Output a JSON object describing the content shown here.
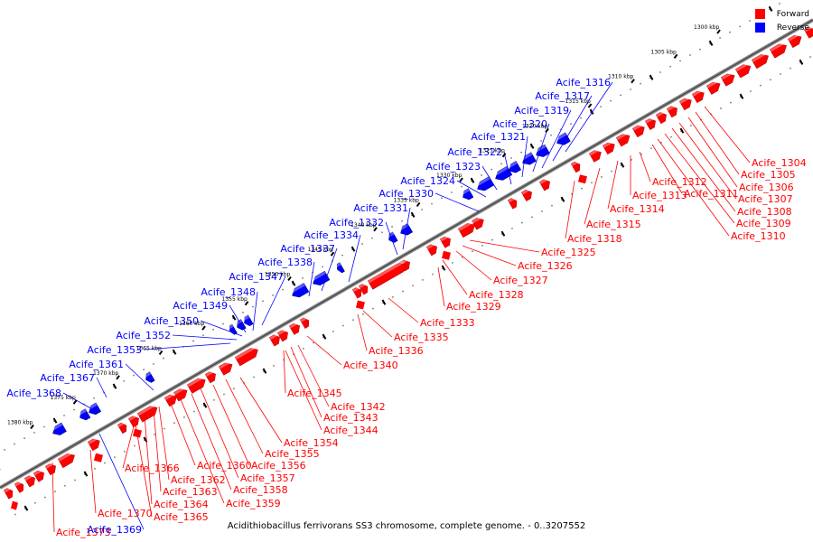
{
  "title": "Acidithiobacillus ferrivorans SS3 chromosome, complete genome. - 0..3207552",
  "legend": {
    "forward_label": "Forward",
    "reverse_label": "Reverse",
    "forward_color": "#ff0000",
    "reverse_color": "#0000ff"
  },
  "ruler_ticks": [
    "1300 kbp",
    "1305 kbp",
    "1310 kbp",
    "1315 kbp",
    "1320 kbp",
    "1325 kbp",
    "1330 kbp",
    "1335 kbp",
    "1340 kbp",
    "1345 kbp",
    "1350 kbp",
    "1355 kbp",
    "1360 kbp",
    "1365 kbp",
    "1370 kbp",
    "1375 kbp",
    "1380 kbp"
  ],
  "forward_labels": [
    "Acife_1304",
    "Acife_1305",
    "Acife_1306",
    "Acife_1307",
    "Acife_1308",
    "Acife_1309",
    "Acife_1310",
    "Acife_1311",
    "Acife_1312",
    "Acife_1313",
    "Acife_1314",
    "Acife_1315",
    "Acife_1318",
    "Acife_1325",
    "Acife_1326",
    "Acife_1327",
    "Acife_1328",
    "Acife_1329",
    "Acife_1333",
    "Acife_1335",
    "Acife_1336",
    "Acife_1340",
    "Acife_1345",
    "Acife_1342",
    "Acife_1343",
    "Acife_1344",
    "Acife_1354",
    "Acife_1355",
    "Acife_1356",
    "Acife_1357",
    "Acife_1358",
    "Acife_1359",
    "Acife_1360",
    "Acife_1362",
    "Acife_1363",
    "Acife_1364",
    "Acife_1365",
    "Acife_1366",
    "Acife_1370",
    "Acife_1373"
  ],
  "reverse_labels": [
    "Acife_1316",
    "Acife_1317",
    "Acife_1319",
    "Acife_1320",
    "Acife_1321",
    "Acife_1322",
    "Acife_1323",
    "Acife_1324",
    "Acife_1330",
    "Acife_1331",
    "Acife_1332",
    "Acife_1334",
    "Acife_1337",
    "Acife_1338",
    "Acife_1347",
    "Acife_1348",
    "Acife_1349",
    "Acife_1350",
    "Acife_1352",
    "Acife_1353",
    "Acife_1361",
    "Acife_1367",
    "Acife_1368",
    "Acife_1369"
  ]
}
